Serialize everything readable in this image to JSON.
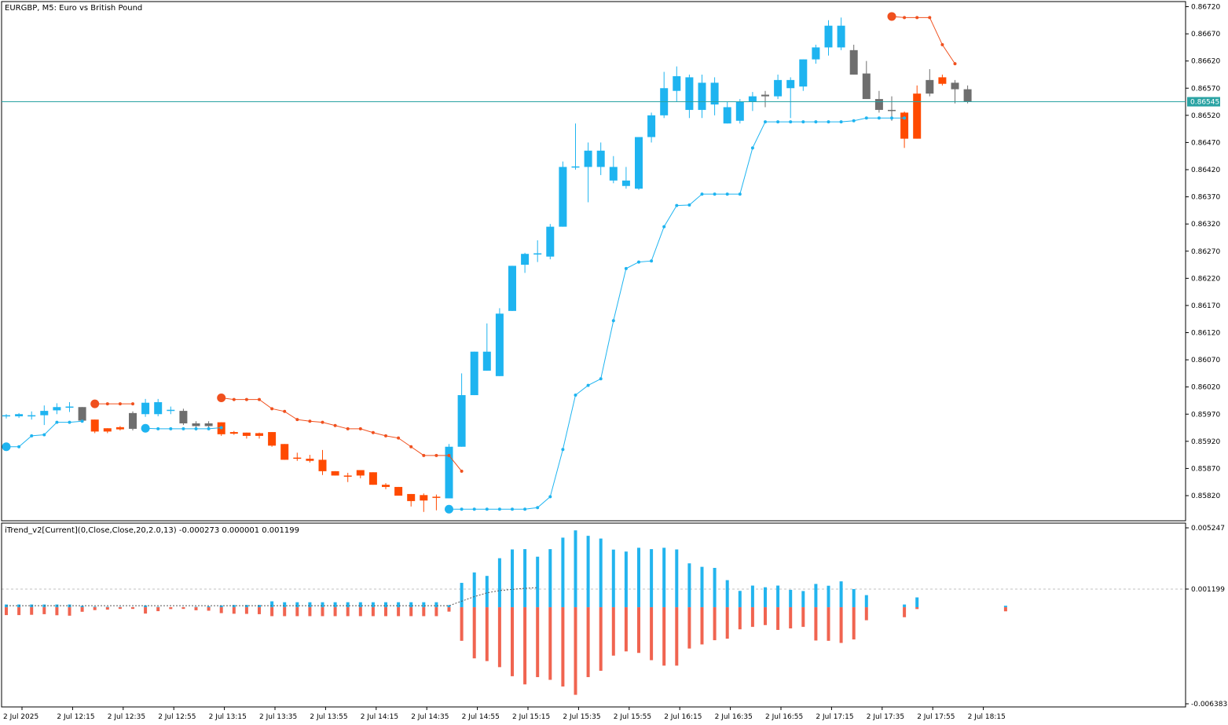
{
  "window": {
    "title": "EURGBP, M5:  Euro vs British Pound",
    "indicator_label": "iTrend_v2[Current](0,Close,Close,20,2.0,13) -0.000273 0.000001 0.001199"
  },
  "colors": {
    "bull": "#1EB4F0",
    "bear": "#FF4A00",
    "neutral": "#6E6E6E",
    "stop_bull": "#1EB4F0",
    "stop_bear": "#F0501E",
    "hist_pos": "#22B4EE",
    "hist_neg": "#F06450",
    "price_line": "#2AA3A3",
    "price_tag_bg": "#2AA3A3",
    "frame": "#000000"
  },
  "chart_data": [
    {
      "type": "candlestick",
      "title": "EURGBP, M5:  Euro vs British Pound",
      "ylim": [
        0.8578,
        0.8673
      ],
      "y_ticks": [
        "0.86720",
        "0.86670",
        "0.86620",
        "0.86570",
        "0.86520",
        "0.86470",
        "0.86420",
        "0.86370",
        "0.86320",
        "0.86270",
        "0.86220",
        "0.86170",
        "0.86120",
        "0.86070",
        "0.86020",
        "0.85970",
        "0.85920",
        "0.85870",
        "0.85820"
      ],
      "current_price": "0.86545",
      "x_labels": [
        "2 Jul 2025",
        "2 Jul 12:15",
        "2 Jul 12:35",
        "2 Jul 12:55",
        "2 Jul 13:15",
        "2 Jul 13:35",
        "2 Jul 13:55",
        "2 Jul 14:15",
        "2 Jul 14:35",
        "2 Jul 14:55",
        "2 Jul 15:15",
        "2 Jul 15:35",
        "2 Jul 15:55",
        "2 Jul 16:15",
        "2 Jul 16:35",
        "2 Jul 16:55",
        "2 Jul 17:15",
        "2 Jul 17:35",
        "2 Jul 17:55",
        "2 Jul 18:15"
      ],
      "candles": [
        {
          "o": 0.85966,
          "h": 0.8597,
          "l": 0.85962,
          "c": 0.85968,
          "s": "bull"
        },
        {
          "o": 0.85966,
          "h": 0.85972,
          "l": 0.85963,
          "c": 0.8597,
          "s": "bull"
        },
        {
          "o": 0.85966,
          "h": 0.85975,
          "l": 0.8596,
          "c": 0.85968,
          "s": "bull"
        },
        {
          "o": 0.85968,
          "h": 0.85986,
          "l": 0.8595,
          "c": 0.85976,
          "s": "bull"
        },
        {
          "o": 0.85977,
          "h": 0.8599,
          "l": 0.8597,
          "c": 0.85983,
          "s": "bull"
        },
        {
          "o": 0.85983,
          "h": 0.85992,
          "l": 0.85974,
          "c": 0.85984,
          "s": "bull"
        },
        {
          "o": 0.85983,
          "h": 0.85983,
          "l": 0.8596,
          "c": 0.85958,
          "s": "neutral"
        },
        {
          "o": 0.8596,
          "h": 0.8596,
          "l": 0.85935,
          "c": 0.85938,
          "s": "bear"
        },
        {
          "o": 0.85944,
          "h": 0.85944,
          "l": 0.85935,
          "c": 0.85938,
          "s": "bear"
        },
        {
          "o": 0.85946,
          "h": 0.85948,
          "l": 0.8594,
          "c": 0.85942,
          "s": "bear"
        },
        {
          "o": 0.85943,
          "h": 0.85975,
          "l": 0.8594,
          "c": 0.85972,
          "s": "neutral"
        },
        {
          "o": 0.8597,
          "h": 0.85998,
          "l": 0.85965,
          "c": 0.85991,
          "s": "bull"
        },
        {
          "o": 0.8597,
          "h": 0.85998,
          "l": 0.85966,
          "c": 0.85992,
          "s": "bull"
        },
        {
          "o": 0.85976,
          "h": 0.85984,
          "l": 0.8597,
          "c": 0.85978,
          "s": "bull"
        },
        {
          "o": 0.85976,
          "h": 0.8598,
          "l": 0.8595,
          "c": 0.85953,
          "s": "neutral"
        },
        {
          "o": 0.85953,
          "h": 0.85957,
          "l": 0.8594,
          "c": 0.85948,
          "s": "neutral"
        },
        {
          "o": 0.85948,
          "h": 0.85957,
          "l": 0.85945,
          "c": 0.85953,
          "s": "neutral"
        },
        {
          "o": 0.85955,
          "h": 0.85955,
          "l": 0.8593,
          "c": 0.85933,
          "s": "bear"
        },
        {
          "o": 0.85937,
          "h": 0.85939,
          "l": 0.85932,
          "c": 0.85934,
          "s": "bear"
        },
        {
          "o": 0.85936,
          "h": 0.85936,
          "l": 0.85925,
          "c": 0.8593,
          "s": "bear"
        },
        {
          "o": 0.85935,
          "h": 0.85936,
          "l": 0.85925,
          "c": 0.8593,
          "s": "bear"
        },
        {
          "o": 0.85937,
          "h": 0.85937,
          "l": 0.8591,
          "c": 0.85912,
          "s": "bear"
        },
        {
          "o": 0.85915,
          "h": 0.85915,
          "l": 0.85886,
          "c": 0.85886,
          "s": "bear"
        },
        {
          "o": 0.8589,
          "h": 0.85899,
          "l": 0.85884,
          "c": 0.85888,
          "s": "bear"
        },
        {
          "o": 0.85888,
          "h": 0.85895,
          "l": 0.85881,
          "c": 0.85884,
          "s": "bear"
        },
        {
          "o": 0.85886,
          "h": 0.85904,
          "l": 0.85858,
          "c": 0.85865,
          "s": "bear"
        },
        {
          "o": 0.85865,
          "h": 0.85865,
          "l": 0.85857,
          "c": 0.85857,
          "s": "bear"
        },
        {
          "o": 0.85857,
          "h": 0.85862,
          "l": 0.85845,
          "c": 0.85857,
          "s": "bear"
        },
        {
          "o": 0.85867,
          "h": 0.85867,
          "l": 0.85852,
          "c": 0.85857,
          "s": "bear"
        },
        {
          "o": 0.85863,
          "h": 0.85863,
          "l": 0.8584,
          "c": 0.8584,
          "s": "bear"
        },
        {
          "o": 0.8584,
          "h": 0.85843,
          "l": 0.85832,
          "c": 0.85836,
          "s": "bear"
        },
        {
          "o": 0.85836,
          "h": 0.85836,
          "l": 0.8582,
          "c": 0.8582,
          "s": "bear"
        },
        {
          "o": 0.85823,
          "h": 0.85823,
          "l": 0.858,
          "c": 0.8581,
          "s": "bear"
        },
        {
          "o": 0.85821,
          "h": 0.85824,
          "l": 0.8579,
          "c": 0.85811,
          "s": "bear"
        },
        {
          "o": 0.85818,
          "h": 0.85822,
          "l": 0.85793,
          "c": 0.85818,
          "s": "bear"
        },
        {
          "o": 0.85815,
          "h": 0.85915,
          "l": 0.85815,
          "c": 0.8591,
          "s": "bull"
        },
        {
          "o": 0.8591,
          "h": 0.86045,
          "l": 0.8591,
          "c": 0.86005,
          "s": "bull"
        },
        {
          "o": 0.86005,
          "h": 0.86085,
          "l": 0.86005,
          "c": 0.86085,
          "s": "bull"
        },
        {
          "o": 0.8605,
          "h": 0.86137,
          "l": 0.8605,
          "c": 0.86085,
          "s": "bull"
        },
        {
          "o": 0.8604,
          "h": 0.86165,
          "l": 0.8604,
          "c": 0.86155,
          "s": "bull"
        },
        {
          "o": 0.8616,
          "h": 0.86243,
          "l": 0.8616,
          "c": 0.86243,
          "s": "bull"
        },
        {
          "o": 0.86245,
          "h": 0.86267,
          "l": 0.8623,
          "c": 0.86265,
          "s": "bull"
        },
        {
          "o": 0.86265,
          "h": 0.8629,
          "l": 0.8625,
          "c": 0.86266,
          "s": "bull"
        },
        {
          "o": 0.8626,
          "h": 0.8632,
          "l": 0.86255,
          "c": 0.86315,
          "s": "bull"
        },
        {
          "o": 0.86315,
          "h": 0.86435,
          "l": 0.86315,
          "c": 0.86425,
          "s": "bull"
        },
        {
          "o": 0.86425,
          "h": 0.86505,
          "l": 0.8642,
          "c": 0.86426,
          "s": "bull"
        },
        {
          "o": 0.86425,
          "h": 0.8647,
          "l": 0.8636,
          "c": 0.86455,
          "s": "bull"
        },
        {
          "o": 0.86425,
          "h": 0.8647,
          "l": 0.8641,
          "c": 0.86455,
          "s": "bull"
        },
        {
          "o": 0.86425,
          "h": 0.86445,
          "l": 0.86395,
          "c": 0.864,
          "s": "bull"
        },
        {
          "o": 0.864,
          "h": 0.86425,
          "l": 0.86385,
          "c": 0.8639,
          "s": "bull"
        },
        {
          "o": 0.86385,
          "h": 0.8648,
          "l": 0.86383,
          "c": 0.8648,
          "s": "bull"
        },
        {
          "o": 0.8648,
          "h": 0.86525,
          "l": 0.8647,
          "c": 0.8652,
          "s": "bull"
        },
        {
          "o": 0.8652,
          "h": 0.866,
          "l": 0.86515,
          "c": 0.8657,
          "s": "bull"
        },
        {
          "o": 0.86565,
          "h": 0.8661,
          "l": 0.86545,
          "c": 0.86592,
          "s": "bull"
        },
        {
          "o": 0.8659,
          "h": 0.86595,
          "l": 0.86515,
          "c": 0.8653,
          "s": "bull"
        },
        {
          "o": 0.8653,
          "h": 0.86595,
          "l": 0.86515,
          "c": 0.8658,
          "s": "bull"
        },
        {
          "o": 0.8654,
          "h": 0.8659,
          "l": 0.8652,
          "c": 0.8658,
          "s": "bull"
        },
        {
          "o": 0.86505,
          "h": 0.86545,
          "l": 0.86505,
          "c": 0.86535,
          "s": "bull"
        },
        {
          "o": 0.8651,
          "h": 0.8655,
          "l": 0.86505,
          "c": 0.86545,
          "s": "bull"
        },
        {
          "o": 0.86545,
          "h": 0.86563,
          "l": 0.86528,
          "c": 0.86555,
          "s": "bull"
        },
        {
          "o": 0.86555,
          "h": 0.86565,
          "l": 0.86535,
          "c": 0.86558,
          "s": "neutral"
        },
        {
          "o": 0.86555,
          "h": 0.86595,
          "l": 0.8655,
          "c": 0.86585,
          "s": "bull"
        },
        {
          "o": 0.8657,
          "h": 0.8659,
          "l": 0.86515,
          "c": 0.86585,
          "s": "bull"
        },
        {
          "o": 0.86573,
          "h": 0.86623,
          "l": 0.86565,
          "c": 0.86623,
          "s": "bull"
        },
        {
          "o": 0.86623,
          "h": 0.8665,
          "l": 0.86615,
          "c": 0.86645,
          "s": "bull"
        },
        {
          "o": 0.86645,
          "h": 0.86695,
          "l": 0.8663,
          "c": 0.86685,
          "s": "bull"
        },
        {
          "o": 0.86645,
          "h": 0.867,
          "l": 0.8664,
          "c": 0.86685,
          "s": "bull"
        },
        {
          "o": 0.8664,
          "h": 0.8665,
          "l": 0.86595,
          "c": 0.86595,
          "s": "neutral"
        },
        {
          "o": 0.86597,
          "h": 0.8662,
          "l": 0.86555,
          "c": 0.8655,
          "s": "neutral"
        },
        {
          "o": 0.8655,
          "h": 0.86565,
          "l": 0.86525,
          "c": 0.8653,
          "s": "neutral"
        },
        {
          "o": 0.8653,
          "h": 0.86555,
          "l": 0.8651,
          "c": 0.86528,
          "s": "neutral"
        },
        {
          "o": 0.86525,
          "h": 0.86527,
          "l": 0.8646,
          "c": 0.86477,
          "s": "bear"
        },
        {
          "o": 0.8656,
          "h": 0.86575,
          "l": 0.86477,
          "c": 0.86477,
          "s": "bear"
        },
        {
          "o": 0.8656,
          "h": 0.86605,
          "l": 0.86555,
          "c": 0.86585,
          "s": "neutral"
        },
        {
          "o": 0.8659,
          "h": 0.86595,
          "l": 0.86575,
          "c": 0.86578,
          "s": "bear"
        },
        {
          "o": 0.8658,
          "h": 0.86585,
          "l": 0.86542,
          "c": 0.86568,
          "s": "neutral"
        },
        {
          "o": 0.86568,
          "h": 0.86575,
          "l": 0.86542,
          "c": 0.86545,
          "s": "neutral"
        }
      ],
      "stop_bear_runs": [
        {
          "start": 7,
          "values": [
            0.85989,
            0.85989,
            0.85989,
            0.85989
          ]
        },
        {
          "start": 17,
          "values": [
            0.86,
            0.85997,
            0.85997,
            0.85997,
            0.8598,
            0.85975,
            0.8596,
            0.85957,
            0.85955,
            0.85949,
            0.85943,
            0.85943,
            0.85936,
            0.8593,
            0.85926,
            0.8591,
            0.85894,
            0.85894,
            0.85894,
            0.85865
          ]
        },
        {
          "start": 70,
          "values": [
            0.86702,
            0.867,
            0.867,
            0.867,
            0.8665,
            0.86615
          ]
        }
      ],
      "stop_bull_runs": [
        {
          "start": 0,
          "values": [
            0.8591,
            0.8591,
            0.8593,
            0.85932,
            0.85955,
            0.85955,
            0.85957
          ]
        },
        {
          "start": 11,
          "values": [
            0.85944,
            0.85943,
            0.85943,
            0.85943,
            0.85943,
            0.85943,
            0.85945
          ]
        },
        {
          "start": 35,
          "values": [
            0.85795,
            0.85795,
            0.85795,
            0.85795,
            0.85795,
            0.85795,
            0.85795,
            0.85798,
            0.85818,
            0.85905,
            0.86005,
            0.86023,
            0.86035,
            0.86142,
            0.86238,
            0.8625,
            0.86252,
            0.86315,
            0.86354,
            0.86355,
            0.86375,
            0.86375,
            0.86375,
            0.86375,
            0.8646,
            0.86508,
            0.86508,
            0.86508,
            0.86508,
            0.86508,
            0.86508,
            0.86508,
            0.8651,
            0.86515,
            0.86515,
            0.86515,
            0.86515
          ]
        }
      ]
    },
    {
      "type": "bar",
      "title": "iTrend_v2[Current](0,Close,Close,20,2.0,13) -0.000273 0.000001 0.001199",
      "ylim": [
        -0.006383,
        0.005247
      ],
      "y_ticks": [
        "0.005247",
        "0.001199",
        "-0.006383"
      ],
      "level": 0.001199,
      "series": [
        {
          "values": [
            0.00018,
            0.00018,
            0.00018,
            0.00018,
            0.00018,
            0.00018,
            9e-05,
            4e-05,
            3e-05,
            2e-05,
            1e-05,
            0.00012,
            3e-05,
            -1e-05,
            1e-05,
            3e-05,
            6e-05,
            0.00012,
            0.00015,
            0.00015,
            0.00015,
            0.00039,
            0.00033,
            0.00033,
            0.00033,
            0.00033,
            0.00033,
            0.00033,
            0.00033,
            0.00033,
            0.00033,
            0.00033,
            0.00033,
            0.00033,
            0.00033,
            0.00014,
            0.00161,
            0.0023,
            0.00207,
            0.00324,
            0.00382,
            0.00384,
            0.00334,
            0.00384,
            0.0046,
            0.00508,
            0.00472,
            0.00454,
            0.00381,
            0.00368,
            0.00393,
            0.00384,
            0.00393,
            0.00382,
            0.0029,
            0.00267,
            0.0026,
            0.00179,
            0.00108,
            0.00143,
            0.00132,
            0.00143,
            0.00115,
            0.00107,
            0.00154,
            0.00142,
            0.00171,
            0.0012,
            0.0008,
            0,
            0,
            0.00018,
            0.00065,
            0,
            0,
            0,
            0,
            0,
            0,
            0.0001
          ]
        },
        {
          "values": [
            -0.00052,
            -0.00052,
            -0.0005,
            -0.00046,
            -0.00053,
            -0.00056,
            -0.0003,
            -0.00019,
            -0.00016,
            -0.00011,
            -0.00011,
            -0.00042,
            -0.00026,
            -0.00012,
            -0.00011,
            -0.0002,
            -0.00023,
            -0.00039,
            -0.00043,
            -0.00044,
            -0.00046,
            -0.00059,
            -0.00059,
            -0.00059,
            -0.00059,
            -0.00059,
            -0.00059,
            -0.00059,
            -0.00059,
            -0.00059,
            -0.00059,
            -0.00059,
            -0.00059,
            -0.00059,
            -0.00059,
            -0.00029,
            -0.00222,
            -0.00338,
            -0.00356,
            -0.00396,
            -0.00456,
            -0.0051,
            -0.00462,
            -0.0048,
            -0.00524,
            -0.00579,
            -0.00462,
            -0.0042,
            -0.0032,
            -0.00292,
            -0.00302,
            -0.0035,
            -0.00386,
            -0.00386,
            -0.00273,
            -0.00246,
            -0.00218,
            -0.00208,
            -0.00146,
            -0.0013,
            -0.00118,
            -0.0015,
            -0.0014,
            -0.0013,
            -0.0022,
            -0.00222,
            -0.00236,
            -0.00213,
            -0.00086,
            0,
            0,
            -0.00066,
            -0.00012,
            0,
            0,
            0,
            0,
            0,
            0,
            -0.00027
          ]
        }
      ],
      "signal_line": [
        0.0001,
        0.0001,
        0.0001,
        0.0001,
        0.0001,
        0.0001,
        0.0001,
        0.0001,
        0.0001,
        0.0001,
        0.0001,
        0.0001,
        0.0001,
        0.0001,
        0.0001,
        0.0001,
        0.0001,
        0.0001,
        0.0001,
        0.0001,
        0.0001,
        0.0001,
        0.0001,
        0.0001,
        0.0001,
        0.0001,
        0.0001,
        0.0001,
        0.0001,
        0.0001,
        0.0001,
        0.0001,
        0.0001,
        0.0001,
        0.0001,
        0.0001,
        0.0004,
        0.0007,
        0.00095,
        0.0011,
        0.00118,
        0.00125,
        0.0013
      ]
    }
  ]
}
